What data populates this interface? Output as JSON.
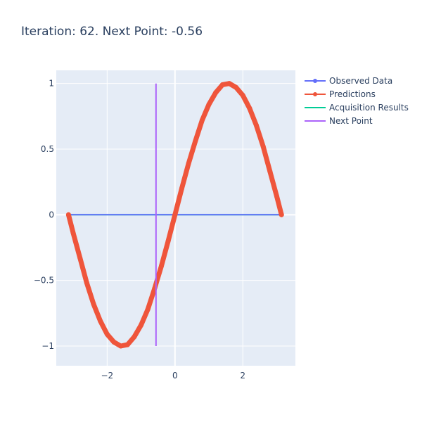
{
  "title": "Iteration: 62. Next Point: -0.56",
  "colors": {
    "observed": "#636efa",
    "predictions": "#ef553b",
    "acquisition": "#00cc96",
    "next_point": "#ab63fa",
    "plot_bg": "#e5ecf6",
    "grid": "#ffffff",
    "text": "#2a3f5f"
  },
  "legend": [
    "Observed Data",
    "Predictions",
    "Acquisition Results",
    "Next Point"
  ],
  "chart_data": {
    "type": "line",
    "title": "Iteration: 62. Next Point: -0.56",
    "xlabel": "",
    "ylabel": "",
    "xlim": [
      -3.5,
      3.55
    ],
    "ylim": [
      -1.15,
      1.1
    ],
    "x_ticks": [
      -2,
      0,
      2
    ],
    "x_tick_labels": [
      "−2",
      "0",
      "2"
    ],
    "y_ticks": [
      -1,
      -0.5,
      0,
      0.5,
      1
    ],
    "y_tick_labels": [
      "−1",
      "−0.5",
      "0",
      "0.5",
      "1"
    ],
    "grid": true,
    "legend_position": "top-right",
    "series": [
      {
        "name": "Observed Data",
        "mode": "lines+markers",
        "x": [
          -3.14,
          3.14
        ],
        "y": [
          0,
          0
        ]
      },
      {
        "name": "Predictions",
        "mode": "lines+markers",
        "x": [
          -3.14,
          -3.0,
          -2.8,
          -2.6,
          -2.4,
          -2.2,
          -2.0,
          -1.8,
          -1.6,
          -1.4,
          -1.2,
          -1.0,
          -0.8,
          -0.6,
          -0.4,
          -0.2,
          0.0,
          0.2,
          0.4,
          0.6,
          0.8,
          1.0,
          1.2,
          1.4,
          1.6,
          1.8,
          2.0,
          2.2,
          2.4,
          2.6,
          2.8,
          3.0,
          3.14
        ],
        "y": [
          0.0,
          -0.14,
          -0.33,
          -0.52,
          -0.68,
          -0.81,
          -0.91,
          -0.97,
          -1.0,
          -0.99,
          -0.93,
          -0.84,
          -0.72,
          -0.56,
          -0.39,
          -0.2,
          0.0,
          0.2,
          0.39,
          0.56,
          0.72,
          0.84,
          0.93,
          0.99,
          1.0,
          0.97,
          0.91,
          0.81,
          0.68,
          0.52,
          0.33,
          0.14,
          0.0
        ]
      },
      {
        "name": "Acquisition Results",
        "mode": "lines",
        "x": [
          -3.14,
          3.14
        ],
        "y": [
          0,
          0
        ]
      },
      {
        "name": "Next Point",
        "mode": "lines",
        "x": [
          -0.56,
          -0.56
        ],
        "y": [
          -1,
          1
        ]
      }
    ]
  }
}
